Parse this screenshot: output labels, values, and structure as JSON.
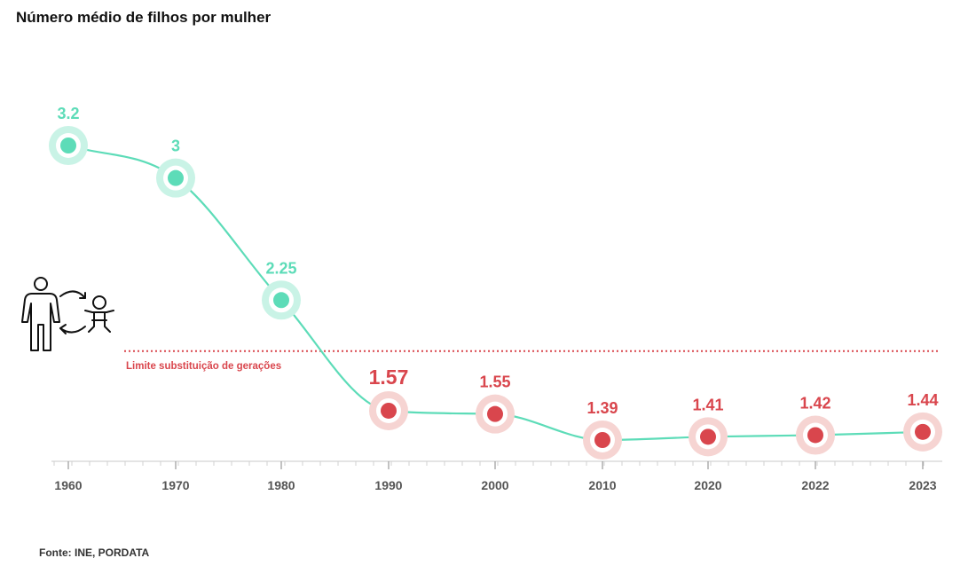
{
  "title": "Número médio de filhos por mulher",
  "source": "Fonte: INE, PORDATA",
  "colors": {
    "above": "#5ddcb8",
    "above_halo": "#c9f3e6",
    "below": "#d9464d",
    "below_halo": "#f6d4d2",
    "line": "#5ddcb8",
    "reference": "#d9464d"
  },
  "icons": [
    "adult-person-icon",
    "baby-icon",
    "circular-arrows-icon"
  ],
  "chart_data": {
    "type": "line",
    "x": [
      "1960",
      "1970",
      "1980",
      "1990",
      "2000",
      "2010",
      "2020",
      "2022",
      "2023"
    ],
    "values": [
      3.2,
      3,
      2.25,
      1.57,
      1.55,
      1.39,
      1.41,
      1.42,
      1.44
    ],
    "labels": [
      "3.2",
      "3",
      "2.25",
      "1.57",
      "1.55",
      "1.39",
      "1.41",
      "1.42",
      "1.44"
    ],
    "reference_line": {
      "value": 2.1,
      "label": "Limite substituição de gerações"
    },
    "ylim": [
      1.2,
      3.35
    ],
    "grid": false,
    "xlabel": "",
    "ylabel": ""
  }
}
